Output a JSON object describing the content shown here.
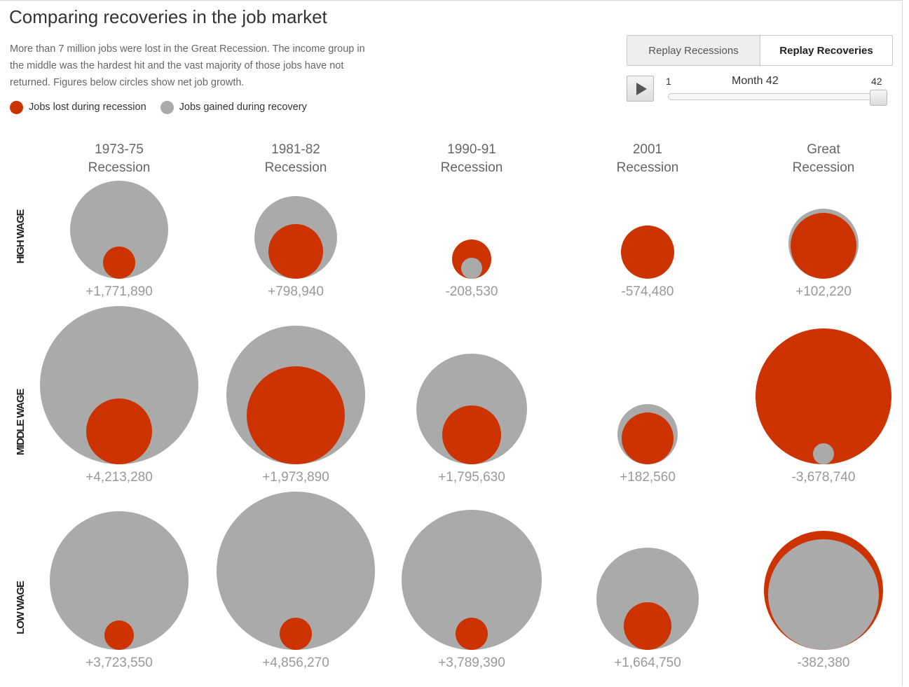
{
  "title": "Comparing recoveries in the job market",
  "intro": [
    "More than 7 million jobs were lost in the Great Recession. The income group in",
    "the middle was the hardest hit and the vast majority of those jobs have not",
    "returned. Figures below circles show net job growth."
  ],
  "legend": {
    "lost": "Jobs lost during recession",
    "gained": "Jobs gained during recovery"
  },
  "colors": {
    "lost": "#cc3300",
    "gained": "#aaaaaa"
  },
  "controls": {
    "replay_recessions": "Replay Recessions",
    "replay_recoveries": "Replay Recoveries",
    "active_button": "Replay Recoveries",
    "play_icon": "play-icon",
    "slider": {
      "min": "1",
      "max": "42",
      "current_label": "Month 42",
      "value": 42
    }
  },
  "columns": [
    {
      "line1": "1973-75",
      "line2": "Recession"
    },
    {
      "line1": "1981-82",
      "line2": "Recession"
    },
    {
      "line1": "1990-91",
      "line2": "Recession"
    },
    {
      "line1": "2001",
      "line2": "Recession"
    },
    {
      "line1": "Great",
      "line2": "Recession"
    }
  ],
  "rows": [
    {
      "label": "HIGH WAGE"
    },
    {
      "label": "MIDDLE WAGE"
    },
    {
      "label": "LOW WAGE"
    }
  ],
  "chart_data": {
    "type": "bubble",
    "note_series": [
      "Jobs lost during recession",
      "Jobs gained during recovery"
    ],
    "cells": [
      [
        {
          "net": "+1,771,890",
          "lost_r": 23,
          "gained_r": 70
        },
        {
          "net": "+798,940",
          "lost_r": 39,
          "gained_r": 59
        },
        {
          "net": "-208,530",
          "lost_r": 28,
          "gained_r": 15
        },
        {
          "net": "-574,480",
          "lost_r": 38,
          "gained_r": 0
        },
        {
          "net": "+102,220",
          "lost_r": 47,
          "gained_r": 50
        }
      ],
      [
        {
          "net": "+4,213,280",
          "lost_r": 47,
          "gained_r": 113
        },
        {
          "net": "+1,973,890",
          "lost_r": 70,
          "gained_r": 99
        },
        {
          "net": "+1,795,630",
          "lost_r": 42,
          "gained_r": 79
        },
        {
          "net": "+182,560",
          "lost_r": 37,
          "gained_r": 43
        },
        {
          "net": "-3,678,740",
          "lost_r": 97,
          "gained_r": 15
        }
      ],
      [
        {
          "net": "+3,723,550",
          "lost_r": 21,
          "gained_r": 99
        },
        {
          "net": "+4,856,270",
          "lost_r": 23,
          "gained_r": 113
        },
        {
          "net": "+3,789,390",
          "lost_r": 23,
          "gained_r": 100
        },
        {
          "net": "+1,664,750",
          "lost_r": 34,
          "gained_r": 73
        },
        {
          "net": "-382,380",
          "lost_r": 85,
          "gained_r": 79
        }
      ]
    ]
  }
}
